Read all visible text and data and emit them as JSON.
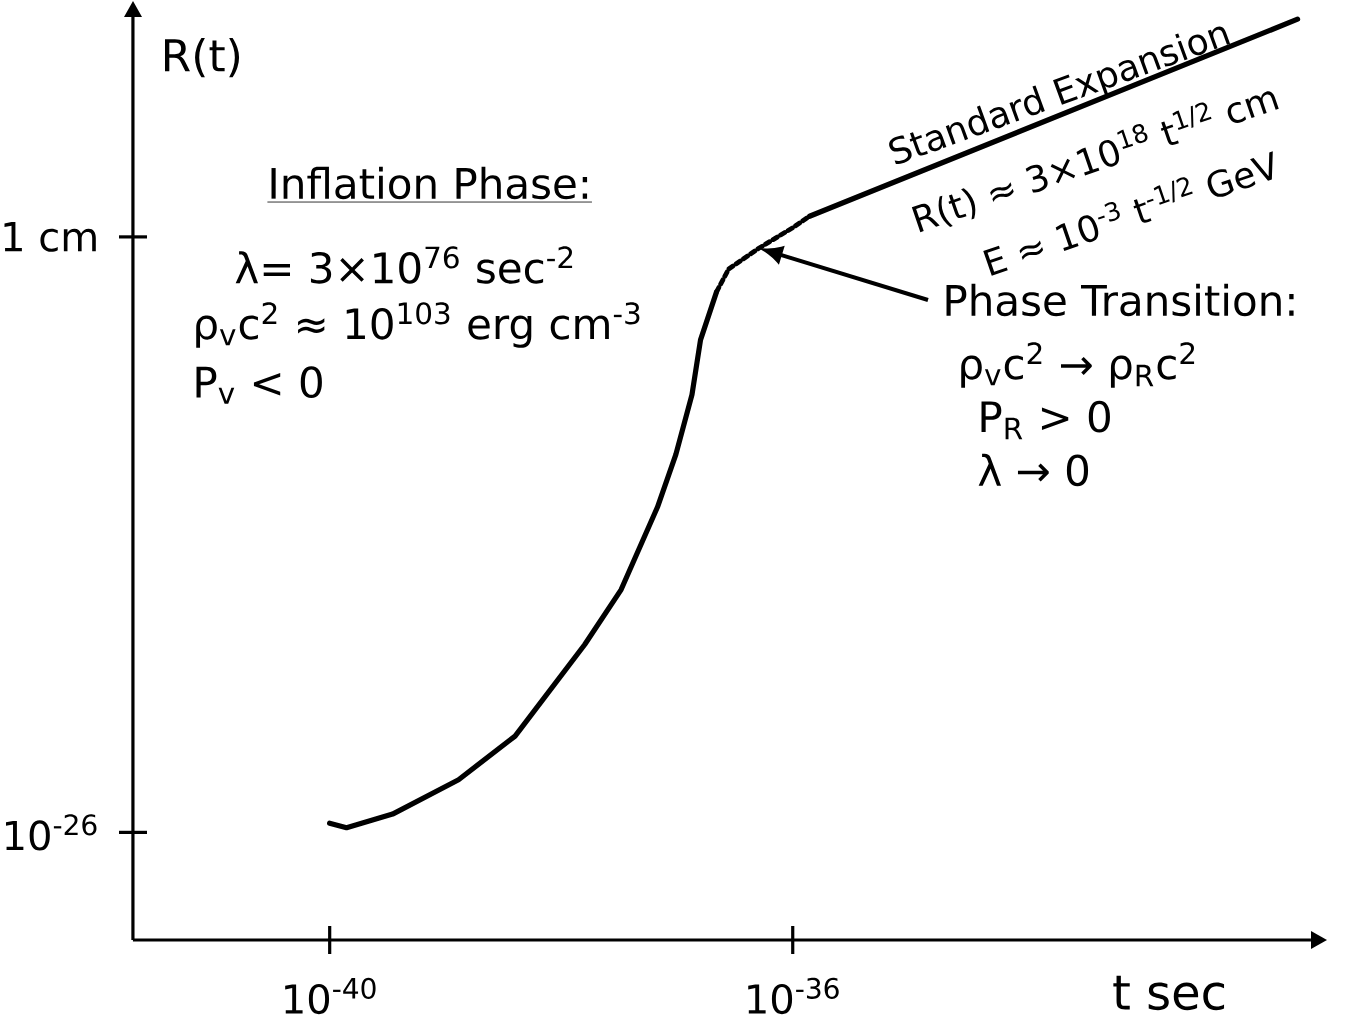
{
  "chart_data": {
    "type": "line",
    "log": "xy",
    "xlabel": "t sec",
    "ylabel": "R(t)",
    "xlim": [
      2e-42,
      3e-32
    ],
    "ylim": [
      2e-31,
      4000000000.0
    ],
    "xticks": [
      {
        "value": 1e-40,
        "label": "10$^{-40}$"
      },
      {
        "value": 1e-36,
        "label": "10$^{-36}$"
      }
    ],
    "yticks": [
      {
        "value": 1e-26,
        "label": "10$^{-26}$"
      },
      {
        "value": 1,
        "label": "1 cm"
      }
    ],
    "grid": false,
    "series": [
      {
        "color": "#000000",
        "line_style": "solid",
        "x": [
          1e-40,
          1.4e-40,
          3.5e-40,
          1.3e-39,
          4e-39,
          1.6e-38,
          3.3e-38,
          6.8e-38,
          9.8e-38,
          1.35e-37,
          1.6e-37,
          2.2e-37
        ],
        "values": [
          2.5e-26,
          1.6e-26,
          6.3e-26,
          2e-24,
          1.6e-22,
          1.6e-18,
          4e-16,
          1.6e-12,
          3.2e-10,
          1.3e-07,
          3.2e-05,
          0.004
        ]
      },
      {
        "color": "#000000",
        "line_style": "dotted",
        "x": [
          2.2e-37,
          2.8e-37,
          5.1e-37,
          1e-36,
          1.4e-36
        ],
        "values": [
          0.004,
          0.04,
          0.32,
          2.5,
          8
        ]
      },
      {
        "color": "#000000",
        "line_style": "solid",
        "x": [
          1.4e-36,
          2.3e-32
        ],
        "values": [
          8,
          3200000000.0
        ]
      }
    ],
    "annotations": [
      "Inflation Phase:",
      "λ= 3×10$^{76}$ sec$^{-2}$",
      "ρ$_{v}$c$^{2}$ ≈ 10$^{103}$ erg cm$^{-3}$",
      "P$_{v}$ < 0",
      "Standard Expansion",
      "R(t) ≈ 3×10$^{18}$ t$^{1/2}$ cm",
      "E ≈ 10$^{-3}$ t$^{-1/2}$ GeV",
      "Phase Transition:",
      "ρ$_{v}$c$^{2}$ → ρ$_{R}$c$^{2}$",
      "P$_{R}$ > 0",
      "λ → 0"
    ]
  }
}
